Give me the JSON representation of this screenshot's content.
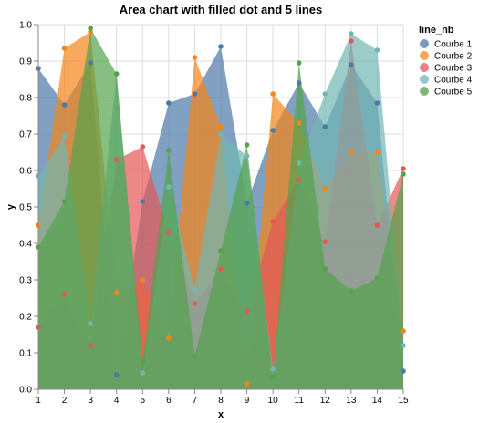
{
  "chart_data": {
    "type": "area",
    "title": "Area chart with filled dot and 5 lines",
    "xlabel": "x",
    "ylabel": "y",
    "x": [
      1,
      2,
      3,
      4,
      5,
      6,
      7,
      8,
      9,
      10,
      11,
      12,
      13,
      14,
      15
    ],
    "x_ticks": [
      "1",
      "2",
      "3",
      "4",
      "5",
      "6",
      "7",
      "8",
      "9",
      "10",
      "11",
      "12",
      "13",
      "14",
      "15"
    ],
    "xlim": [
      1,
      15
    ],
    "ylim": [
      0,
      1
    ],
    "y_ticks": [
      "0.0",
      "0.1",
      "0.2",
      "0.3",
      "0.4",
      "0.5",
      "0.6",
      "0.7",
      "0.8",
      "0.9",
      "1.0"
    ],
    "grid": true,
    "legend_title": "line_nb",
    "legend_position": "right",
    "stacked": false,
    "series": [
      {
        "name": "Courbe 1",
        "color": "#4c78a8",
        "values": [
          0.88,
          0.78,
          0.895,
          0.04,
          0.515,
          0.785,
          0.81,
          0.94,
          0.51,
          0.71,
          0.84,
          0.72,
          0.89,
          0.785,
          0.05
        ]
      },
      {
        "name": "Courbe 2",
        "color": "#f58518",
        "values": [
          0.45,
          0.935,
          0.98,
          0.265,
          0.3,
          0.14,
          0.91,
          0.72,
          0.015,
          0.81,
          0.73,
          0.55,
          0.65,
          0.65,
          0.16
        ]
      },
      {
        "name": "Courbe 3",
        "color": "#e45756",
        "values": [
          0.17,
          0.26,
          0.12,
          0.63,
          0.665,
          0.43,
          0.235,
          0.33,
          0.215,
          0.46,
          0.575,
          0.405,
          0.955,
          0.45,
          0.605
        ]
      },
      {
        "name": "Courbe 4",
        "color": "#72b7b2",
        "values": [
          0.585,
          0.695,
          0.18,
          0.865,
          0.045,
          0.555,
          0.275,
          0.7,
          0.64,
          0.055,
          0.62,
          0.81,
          0.975,
          0.93,
          0.12
        ]
      },
      {
        "name": "Courbe 5",
        "color": "#54a24b",
        "values": [
          0.39,
          0.515,
          0.99,
          0.865,
          0.075,
          0.655,
          0.09,
          0.38,
          0.67,
          0.035,
          0.895,
          0.33,
          0.27,
          0.305,
          0.59
        ]
      }
    ]
  }
}
